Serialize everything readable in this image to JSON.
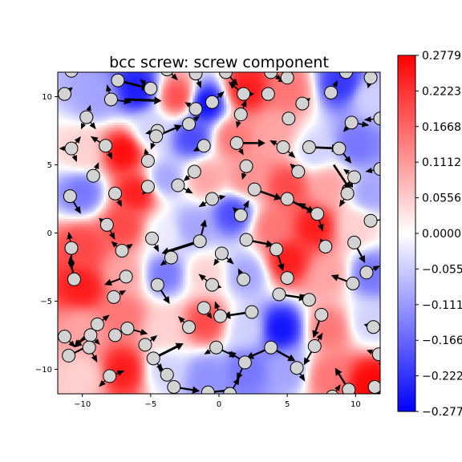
{
  "chart_data": {
    "type": "heatmap",
    "title": "bcc screw: screw component",
    "xlabel": "",
    "ylabel": "",
    "xlim": [
      -11.8,
      11.8
    ],
    "ylim": [
      -11.8,
      11.8
    ],
    "x_ticks": [
      -10,
      -5,
      0,
      5,
      10
    ],
    "y_ticks": [
      -10,
      -5,
      0,
      5,
      10
    ],
    "colormap": "bwr",
    "colormap_colors": [
      "#0000ff",
      "#ffffff",
      "#ff0000"
    ],
    "colorbar": {
      "range": [
        -0.2779,
        0.2779
      ],
      "tick_labels": [
        "0.2779",
        "0.2223",
        "0.1668",
        "0.1112",
        "0.0556",
        "0.0000",
        "−0.055",
        "−0.111",
        "−0.166",
        "−0.222",
        "−0.277"
      ],
      "tick_values": [
        0.2779,
        0.2223,
        0.1668,
        0.1112,
        0.0556,
        0.0,
        -0.0556,
        -0.1112,
        -0.1668,
        -0.2223,
        -0.2779
      ]
    },
    "field_samples": [
      {
        "x": -9,
        "y": 10,
        "v": -0.1
      },
      {
        "x": -6,
        "y": 10.5,
        "v": -0.25
      },
      {
        "x": -3,
        "y": 10,
        "v": 0.2
      },
      {
        "x": -1,
        "y": 9.5,
        "v": -0.27
      },
      {
        "x": 2,
        "y": 10.5,
        "v": 0.25
      },
      {
        "x": 5,
        "y": 10.5,
        "v": 0.15
      },
      {
        "x": 9,
        "y": 11,
        "v": -0.22
      },
      {
        "x": 11,
        "y": 10,
        "v": -0.05
      },
      {
        "x": -10,
        "y": 6,
        "v": 0.05
      },
      {
        "x": -7,
        "y": 6,
        "v": 0.27
      },
      {
        "x": -5,
        "y": 7.5,
        "v": -0.05
      },
      {
        "x": -2,
        "y": 7,
        "v": -0.2
      },
      {
        "x": 1,
        "y": 7,
        "v": 0.15
      },
      {
        "x": 4,
        "y": 7.5,
        "v": 0.1
      },
      {
        "x": 7,
        "y": 6,
        "v": -0.05
      },
      {
        "x": 10,
        "y": 6.5,
        "v": -0.15
      },
      {
        "x": -10,
        "y": 3,
        "v": -0.15
      },
      {
        "x": -6,
        "y": 3,
        "v": 0.25
      },
      {
        "x": -4,
        "y": 4,
        "v": -0.1
      },
      {
        "x": -1,
        "y": 4,
        "v": 0.1
      },
      {
        "x": 2,
        "y": 4,
        "v": 0.12
      },
      {
        "x": 5,
        "y": 3.5,
        "v": 0.2
      },
      {
        "x": 8,
        "y": 3.5,
        "v": 0.1
      },
      {
        "x": 11,
        "y": 3,
        "v": -0.1
      },
      {
        "x": -10,
        "y": -1,
        "v": 0.2
      },
      {
        "x": -7,
        "y": 0.5,
        "v": 0.2
      },
      {
        "x": -4,
        "y": 0,
        "v": -0.02
      },
      {
        "x": -2,
        "y": 0.5,
        "v": -0.1
      },
      {
        "x": 1,
        "y": 1.5,
        "v": -0.2
      },
      {
        "x": 4,
        "y": 0.5,
        "v": 0.15
      },
      {
        "x": 7,
        "y": 0.5,
        "v": 0.25
      },
      {
        "x": 10,
        "y": 0.5,
        "v": 0.05
      },
      {
        "x": -10,
        "y": -4,
        "v": 0.25
      },
      {
        "x": -7,
        "y": -3,
        "v": 0.1
      },
      {
        "x": -4,
        "y": -3,
        "v": -0.15
      },
      {
        "x": -1,
        "y": -3,
        "v": 0.05
      },
      {
        "x": 2,
        "y": -3,
        "v": -0.1
      },
      {
        "x": 5,
        "y": -2,
        "v": 0.25
      },
      {
        "x": 8,
        "y": -3,
        "v": 0.1
      },
      {
        "x": 11,
        "y": -3,
        "v": -0.15
      },
      {
        "x": -10,
        "y": -7,
        "v": 0.1
      },
      {
        "x": -7,
        "y": -6,
        "v": 0.15
      },
      {
        "x": -4,
        "y": -7,
        "v": 0.05
      },
      {
        "x": -1,
        "y": -6.5,
        "v": 0.2
      },
      {
        "x": 2,
        "y": -7,
        "v": -0.05
      },
      {
        "x": 4.5,
        "y": -7,
        "v": -0.26
      },
      {
        "x": 8,
        "y": -7,
        "v": 0.15
      },
      {
        "x": 11,
        "y": -6.5,
        "v": -0.05
      },
      {
        "x": -10,
        "y": -10.5,
        "v": 0.05
      },
      {
        "x": -7,
        "y": -10,
        "v": 0.25
      },
      {
        "x": -4,
        "y": -10,
        "v": -0.05
      },
      {
        "x": -1,
        "y": -10.5,
        "v": -0.12
      },
      {
        "x": 2,
        "y": -10,
        "v": -0.15
      },
      {
        "x": 5,
        "y": -10,
        "v": -0.1
      },
      {
        "x": 8,
        "y": -10.5,
        "v": 0.15
      },
      {
        "x": 11,
        "y": -11,
        "v": 0.27
      }
    ],
    "atoms": [
      [
        -10.8,
        11.9
      ],
      [
        -11.3,
        10.2
      ],
      [
        -7.4,
        11.2
      ],
      [
        -3.8,
        12.0
      ],
      [
        -5.0,
        10.6
      ],
      [
        -1.7,
        11.7
      ],
      [
        -7.9,
        9.8
      ],
      [
        0.5,
        11.8
      ],
      [
        3.8,
        11.8
      ],
      [
        -0.5,
        9.6
      ],
      [
        1.8,
        10.2
      ],
      [
        3.6,
        10.2
      ],
      [
        5.0,
        11.4
      ],
      [
        6.1,
        9.5
      ],
      [
        8.2,
        10.3
      ],
      [
        9.3,
        11.8
      ],
      [
        11.1,
        11.4
      ],
      [
        -9.7,
        8.5
      ],
      [
        -1.7,
        9.1
      ],
      [
        1.6,
        8.7
      ],
      [
        5.1,
        8.4
      ],
      [
        9.7,
        8.1
      ],
      [
        11.8,
        8.4
      ],
      [
        -4.5,
        7.5
      ],
      [
        -2.2,
        8.0
      ],
      [
        -4.6,
        7.1
      ],
      [
        -10.8,
        6.2
      ],
      [
        -8.3,
        6.4
      ],
      [
        -1.1,
        6.4
      ],
      [
        1.3,
        6.6
      ],
      [
        4.7,
        6.3
      ],
      [
        6.6,
        6.3
      ],
      [
        8.8,
        6.2
      ],
      [
        -5.2,
        5.3
      ],
      [
        2.0,
        4.9
      ],
      [
        5.8,
        4.5
      ],
      [
        -9.2,
        4.2
      ],
      [
        -1.8,
        4.5
      ],
      [
        9.9,
        4.1
      ],
      [
        11.8,
        4.7
      ],
      [
        -10.9,
        2.7
      ],
      [
        -7.6,
        2.9
      ],
      [
        -5.2,
        3.4
      ],
      [
        -3.0,
        3.5
      ],
      [
        2.6,
        3.2
      ],
      [
        5.0,
        2.5
      ],
      [
        9.4,
        2.9
      ],
      [
        -0.5,
        2.5
      ],
      [
        1.6,
        1.3
      ],
      [
        7.2,
        1.4
      ],
      [
        11.1,
        0.9
      ],
      [
        -8.2,
        0.6
      ],
      [
        -4.9,
        -0.4
      ],
      [
        -1.4,
        -0.6
      ],
      [
        2.0,
        -0.5
      ],
      [
        -10.8,
        -1.1
      ],
      [
        -7.1,
        -1.3
      ],
      [
        0.2,
        -1.5
      ],
      [
        4.2,
        -1.2
      ],
      [
        7.8,
        -1.0
      ],
      [
        9.9,
        -0.7
      ],
      [
        -3.5,
        -1.8
      ],
      [
        -10.6,
        -3.4
      ],
      [
        -6.8,
        -3.2
      ],
      [
        1.8,
        -3.4
      ],
      [
        5.0,
        -3.3
      ],
      [
        9.8,
        -3.7
      ],
      [
        10.8,
        -2.9
      ],
      [
        -4.5,
        -3.8
      ],
      [
        -0.5,
        -3.8
      ],
      [
        -7.7,
        -4.7
      ],
      [
        4.4,
        -4.5
      ],
      [
        6.6,
        -4.9
      ],
      [
        -1.1,
        -5.5
      ],
      [
        2.4,
        -5.8
      ],
      [
        0.1,
        -6.1
      ],
      [
        -8.9,
        -6.7
      ],
      [
        -6.7,
        -7.0
      ],
      [
        -2.2,
        -6.9
      ],
      [
        -9.4,
        -7.5
      ],
      [
        -7.6,
        -7.5
      ],
      [
        -11.3,
        -7.6
      ],
      [
        7.5,
        -6.0
      ],
      [
        11.3,
        -6.9
      ],
      [
        -5.4,
        -8.2
      ],
      [
        -0.2,
        -8.4
      ],
      [
        3.8,
        -8.4
      ],
      [
        7.0,
        -8.3
      ],
      [
        -11.0,
        -9.0
      ],
      [
        -9.5,
        -8.4
      ],
      [
        -4.8,
        -9.2
      ],
      [
        11.7,
        -8.9
      ],
      [
        1.9,
        -9.5
      ],
      [
        5.7,
        -9.9
      ],
      [
        -3.8,
        -10.4
      ],
      [
        -8.0,
        -10.5
      ],
      [
        -3.3,
        -11.3
      ],
      [
        -0.8,
        -11.7
      ],
      [
        0.8,
        -11.8
      ],
      [
        9.5,
        -11.5
      ],
      [
        11.4,
        -11.3
      ],
      [
        8.3,
        -12.0
      ]
    ],
    "arrows": [
      [
        -10.8,
        11.9,
        -0.3,
        0.8
      ],
      [
        -11.3,
        10.2,
        0.6,
        0.5
      ],
      [
        -7.4,
        11.2,
        2.3,
        -0.6
      ],
      [
        -5.0,
        10.6,
        -0.8,
        0.7
      ],
      [
        -7.9,
        9.8,
        1.5,
        -0.2
      ],
      [
        -7.9,
        9.8,
        -0.3,
        1.1
      ],
      [
        -6.8,
        9.8,
        2.6,
        -0.1
      ],
      [
        -3.8,
        12.0,
        0.8,
        -0.8
      ],
      [
        -1.7,
        11.7,
        0.4,
        -1.1
      ],
      [
        0.5,
        11.8,
        0.6,
        0.9
      ],
      [
        0.5,
        11.8,
        0.9,
        -1.0
      ],
      [
        1.8,
        10.2,
        -1.1,
        0.9
      ],
      [
        1.8,
        10.2,
        0.8,
        0.0
      ],
      [
        -0.5,
        9.6,
        0.9,
        0.8
      ],
      [
        3.8,
        11.8,
        0.8,
        -0.6
      ],
      [
        5.0,
        11.4,
        -0.7,
        -0.3
      ],
      [
        6.1,
        9.5,
        0.6,
        0.4
      ],
      [
        8.2,
        10.3,
        0.5,
        0.9
      ],
      [
        9.3,
        11.8,
        0.8,
        0.6
      ],
      [
        11.1,
        11.4,
        -0.2,
        -0.8
      ],
      [
        -9.7,
        8.5,
        0.7,
        -0.9
      ],
      [
        -9.7,
        8.5,
        -0.4,
        -0.9
      ],
      [
        -9.7,
        8.5,
        0.3,
        0.9
      ],
      [
        -1.7,
        9.1,
        -0.8,
        0.5
      ],
      [
        1.6,
        8.7,
        -0.3,
        -1.0
      ],
      [
        1.6,
        8.7,
        0.4,
        1.1
      ],
      [
        9.7,
        8.1,
        1.3,
        -0.2
      ],
      [
        9.7,
        8.1,
        -0.6,
        -0.7
      ],
      [
        11.8,
        8.4,
        -1.2,
        -0.1
      ],
      [
        -4.5,
        7.5,
        -0.9,
        -0.2
      ],
      [
        -2.2,
        8.0,
        0.8,
        0.6
      ],
      [
        -4.6,
        7.1,
        1.9,
        0.8
      ],
      [
        -4.6,
        7.1,
        -0.4,
        -1.0
      ],
      [
        -10.8,
        6.2,
        -0.9,
        0.0
      ],
      [
        -10.8,
        6.2,
        0.4,
        -1.0
      ],
      [
        -10.8,
        6.2,
        0.7,
        0.9
      ],
      [
        -8.3,
        6.4,
        -1.1,
        0.7
      ],
      [
        -8.3,
        6.4,
        0.5,
        -1.0
      ],
      [
        -1.1,
        6.4,
        -0.8,
        -0.4
      ],
      [
        1.3,
        6.6,
        2.1,
        0.0
      ],
      [
        1.3,
        6.6,
        0.5,
        -0.9
      ],
      [
        4.7,
        6.3,
        -1.0,
        0.5
      ],
      [
        4.7,
        6.3,
        0.9,
        -0.8
      ],
      [
        6.6,
        6.3,
        2.2,
        -0.1
      ],
      [
        8.8,
        6.2,
        0.9,
        -1.1
      ],
      [
        -5.2,
        5.3,
        -0.2,
        0.9
      ],
      [
        2.0,
        4.9,
        -0.3,
        -1.0
      ],
      [
        5.8,
        4.5,
        -0.6,
        0.6
      ],
      [
        -9.2,
        4.2,
        0.4,
        1.0
      ],
      [
        -1.8,
        4.5,
        -0.8,
        -0.7
      ],
      [
        9.9,
        4.1,
        -0.8,
        0.6
      ],
      [
        9.9,
        4.1,
        -1.0,
        -1.2
      ],
      [
        8.4,
        5.0,
        1.2,
        -1.8
      ],
      [
        11.8,
        4.7,
        -1.1,
        -0.2
      ],
      [
        -10.9,
        2.7,
        0.8,
        -1.3
      ],
      [
        -10.9,
        2.7,
        -0.4,
        0.4
      ],
      [
        -7.6,
        2.9,
        0.5,
        -1.0
      ],
      [
        -5.2,
        3.4,
        -0.4,
        -0.6
      ],
      [
        -3.0,
        3.5,
        1.1,
        -0.6
      ],
      [
        2.6,
        3.2,
        2.0,
        -0.7
      ],
      [
        5.0,
        2.5,
        2.0,
        -1.0
      ],
      [
        9.4,
        2.9,
        -0.6,
        -1.0
      ],
      [
        9.4,
        2.9,
        0.4,
        0.9
      ],
      [
        -0.5,
        2.5,
        1.0,
        0.2
      ],
      [
        -0.5,
        2.5,
        -1.0,
        -0.6
      ],
      [
        1.6,
        1.3,
        -0.6,
        0.6
      ],
      [
        1.6,
        1.3,
        0.6,
        1.1
      ],
      [
        7.2,
        1.4,
        -1.4,
        0.8
      ],
      [
        7.2,
        1.4,
        0.4,
        -1.3
      ],
      [
        11.1,
        0.9,
        1.2,
        0.1
      ],
      [
        -8.2,
        0.6,
        -0.6,
        0.5
      ],
      [
        -8.2,
        0.6,
        0.6,
        -1.1
      ],
      [
        -4.9,
        -0.4,
        0.5,
        -1.0
      ],
      [
        -1.4,
        -0.6,
        -2.8,
        -0.9
      ],
      [
        -1.4,
        -0.6,
        0.4,
        1.6
      ],
      [
        2.0,
        -0.5,
        2.0,
        -0.4
      ],
      [
        -10.8,
        -1.1,
        0.0,
        -1.6
      ],
      [
        -10.8,
        -1.1,
        -0.2,
        1.2
      ],
      [
        -7.1,
        -1.3,
        -0.8,
        0.7
      ],
      [
        -7.1,
        -1.3,
        0.8,
        0.5
      ],
      [
        0.2,
        -1.5,
        -0.6,
        -0.9
      ],
      [
        0.2,
        -1.5,
        0.9,
        -0.8
      ],
      [
        4.2,
        -1.2,
        0.5,
        -1.6
      ],
      [
        7.8,
        -1.0,
        -0.4,
        0.6
      ],
      [
        9.9,
        -0.7,
        0.8,
        -1.5
      ],
      [
        -3.5,
        -1.8,
        -0.8,
        -0.6
      ],
      [
        -10.6,
        -3.4,
        -0.3,
        1.7
      ],
      [
        -6.8,
        -3.2,
        -1.6,
        -0.6
      ],
      [
        1.8,
        -3.4,
        -0.4,
        0.8
      ],
      [
        5.0,
        -3.3,
        -0.2,
        0.4
      ],
      [
        9.8,
        -3.7,
        -1.6,
        0.6
      ],
      [
        10.8,
        -2.9,
        1.0,
        0.5
      ],
      [
        -4.5,
        -3.8,
        0.9,
        -1.4
      ],
      [
        -0.5,
        -3.8,
        -1.0,
        0.8
      ],
      [
        -0.5,
        -3.8,
        0.7,
        -0.2
      ],
      [
        -7.7,
        -4.7,
        0.9,
        0.5
      ],
      [
        4.4,
        -4.5,
        2.0,
        -0.3
      ],
      [
        6.6,
        -4.9,
        -0.6,
        0.4
      ],
      [
        -1.1,
        -5.5,
        0.6,
        -0.8
      ],
      [
        2.4,
        -5.8,
        -2.1,
        -0.3
      ],
      [
        0.1,
        -6.1,
        -0.4,
        1.1
      ],
      [
        -8.9,
        -6.7,
        0.9,
        0.7
      ],
      [
        -8.9,
        -6.7,
        -1.7,
        -1.7
      ],
      [
        -6.7,
        -7.0,
        -1.4,
        -0.6
      ],
      [
        -6.7,
        -7.0,
        1.5,
        -0.4
      ],
      [
        -2.2,
        -6.9,
        -0.8,
        0.8
      ],
      [
        -9.4,
        -7.5,
        -1.2,
        -0.8
      ],
      [
        -9.4,
        -7.5,
        0.7,
        -0.7
      ],
      [
        -7.6,
        -7.5,
        0.5,
        0.2
      ],
      [
        -11.3,
        -7.6,
        0.8,
        -0.8
      ],
      [
        7.5,
        -6.0,
        -0.6,
        -1.7
      ],
      [
        11.3,
        -6.9,
        -0.7,
        0.2
      ],
      [
        -5.4,
        -8.2,
        0.9,
        0.7
      ],
      [
        -0.2,
        -8.4,
        1.5,
        -0.7
      ],
      [
        -0.2,
        -8.4,
        -0.9,
        -0.5
      ],
      [
        3.8,
        -8.4,
        -1.8,
        -0.8
      ],
      [
        3.8,
        -8.4,
        1.8,
        -1.0
      ],
      [
        7.0,
        -8.3,
        -0.8,
        -1.4
      ],
      [
        7.0,
        -8.3,
        0.6,
        1.0
      ],
      [
        -11.0,
        -9.0,
        1.6,
        0.8
      ],
      [
        -9.5,
        -8.4,
        0.6,
        -1.1
      ],
      [
        -4.8,
        -9.2,
        2.2,
        1.1
      ],
      [
        -4.8,
        -9.2,
        0.7,
        -0.9
      ],
      [
        11.7,
        -8.9,
        -0.9,
        0.3
      ],
      [
        11.7,
        -8.9,
        0.3,
        -1.1
      ],
      [
        1.9,
        -9.5,
        -1.2,
        0.8
      ],
      [
        1.9,
        -9.5,
        -0.6,
        -1.3
      ],
      [
        5.7,
        -9.9,
        0.6,
        -1.0
      ],
      [
        -3.8,
        -10.4,
        -0.7,
        0.6
      ],
      [
        -8.0,
        -10.5,
        1.1,
        0.4
      ],
      [
        -8.0,
        -10.5,
        -0.8,
        -0.8
      ],
      [
        -3.3,
        -11.3,
        1.9,
        -0.3
      ],
      [
        -0.8,
        -11.7,
        1.9,
        0.2
      ],
      [
        0.8,
        -11.8,
        0.7,
        1.2
      ],
      [
        9.5,
        -11.5,
        -1.0,
        1.6
      ],
      [
        11.4,
        -11.3,
        0.3,
        -0.8
      ],
      [
        8.3,
        -12.0,
        0.6,
        0.9
      ]
    ]
  }
}
